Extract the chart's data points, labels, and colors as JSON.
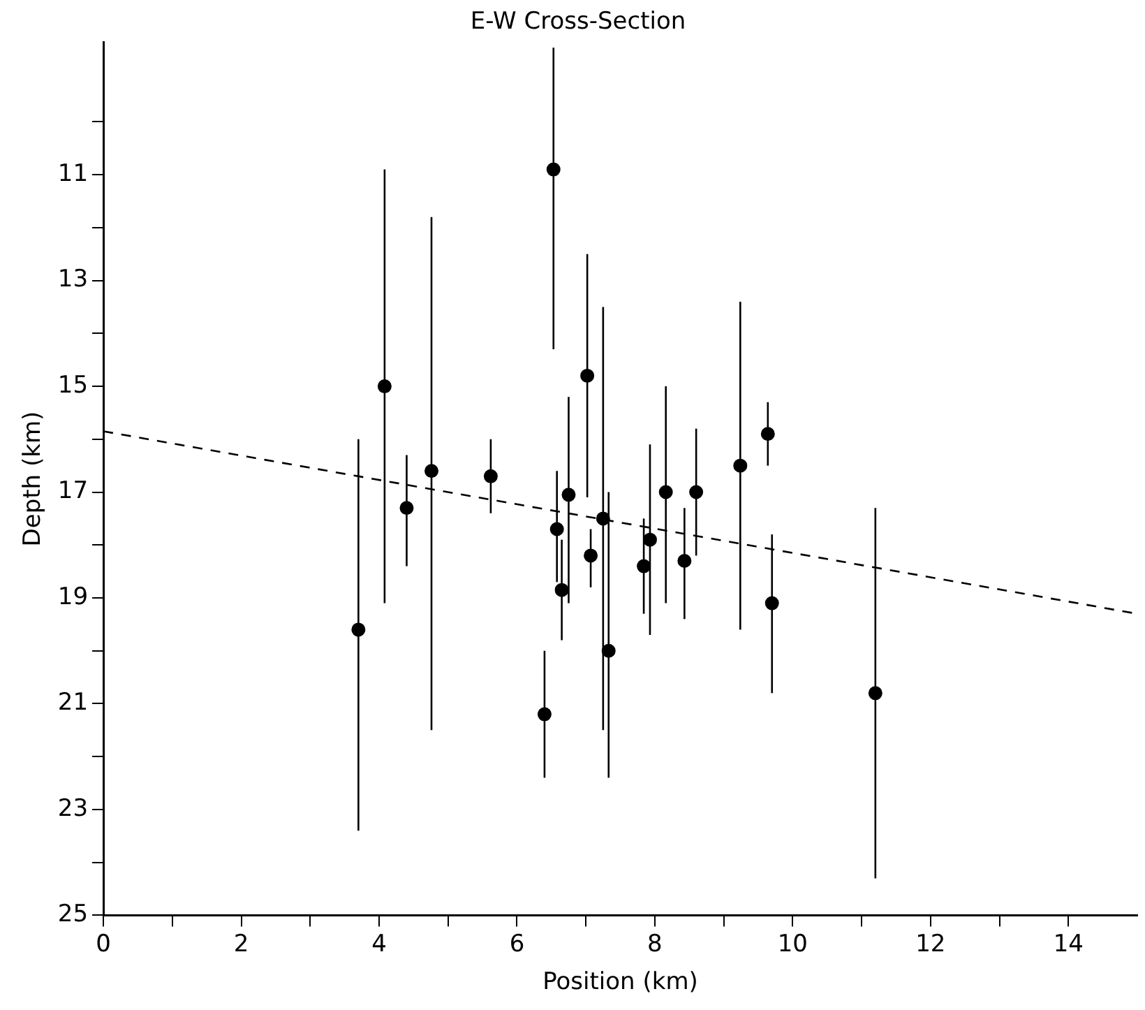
{
  "chart_data": {
    "type": "scatter",
    "title": "E-W Cross-Section",
    "xlabel": "Position (km)",
    "ylabel": "Depth (km)",
    "xlim": [
      0,
      15
    ],
    "xticks": [
      0,
      {
        "value": 1,
        "label": null
      },
      2,
      {
        "value": 3,
        "label": null
      },
      4,
      {
        "value": 5,
        "label": null
      },
      6,
      {
        "value": 7,
        "label": null
      },
      8,
      {
        "value": 9,
        "label": null
      },
      10,
      {
        "value": 11,
        "label": null
      },
      12,
      {
        "value": 13,
        "label": null
      },
      14
    ],
    "ylim": [
      25,
      8.5
    ],
    "yticks": [
      {
        "value": 10,
        "label": null
      },
      11,
      {
        "value": 12,
        "label": null
      },
      13,
      {
        "value": 14,
        "label": null
      },
      15,
      {
        "value": 16,
        "label": null
      },
      17,
      {
        "value": 18,
        "label": null
      },
      19,
      {
        "value": 20,
        "label": null
      },
      21,
      {
        "value": 22,
        "label": null
      },
      23,
      {
        "value": 24,
        "label": null
      },
      25
    ],
    "grid": false,
    "legend": false,
    "series": [
      {
        "marker": "circle",
        "color": "#000000",
        "x": [
          3.7,
          4.08,
          4.4,
          4.76,
          5.62,
          6.53,
          6.58,
          6.65,
          6.75,
          7.02,
          7.07,
          7.25,
          7.33,
          7.84,
          7.93,
          8.16,
          8.43,
          8.6,
          9.24,
          9.64,
          9.7,
          11.2,
          6.4
        ],
        "values": [
          19.6,
          15.0,
          17.3,
          16.6,
          16.7,
          10.9,
          17.7,
          18.85,
          17.05,
          14.8,
          18.2,
          17.5,
          20.0,
          18.4,
          17.9,
          17.0,
          18.3,
          17.0,
          16.5,
          15.9,
          19.1,
          20.8,
          21.2
        ],
        "errors": [
          [
            16.0,
            23.4
          ],
          [
            10.9,
            19.1
          ],
          [
            16.3,
            18.4
          ],
          [
            11.8,
            21.5
          ],
          [
            16.0,
            17.4
          ],
          [
            8.6,
            14.3
          ],
          [
            16.6,
            18.7
          ],
          [
            17.9,
            19.8
          ],
          [
            15.2,
            19.1
          ],
          [
            12.5,
            17.1
          ],
          [
            17.7,
            18.8
          ],
          [
            13.5,
            21.5
          ],
          [
            17.0,
            22.4
          ],
          [
            17.5,
            19.3
          ],
          [
            16.1,
            19.7
          ],
          [
            15.0,
            19.1
          ],
          [
            17.3,
            19.4
          ],
          [
            15.8,
            18.2
          ],
          [
            13.4,
            19.6
          ],
          [
            15.3,
            16.5
          ],
          [
            17.8,
            20.8
          ],
          [
            17.3,
            24.3
          ],
          [
            20.0,
            22.4
          ]
        ]
      },
      {
        "type": "line",
        "color": "#000000",
        "x": [
          0,
          15
        ],
        "values": [
          15.85,
          19.3
        ],
        "line_style": "dashed"
      }
    ]
  }
}
